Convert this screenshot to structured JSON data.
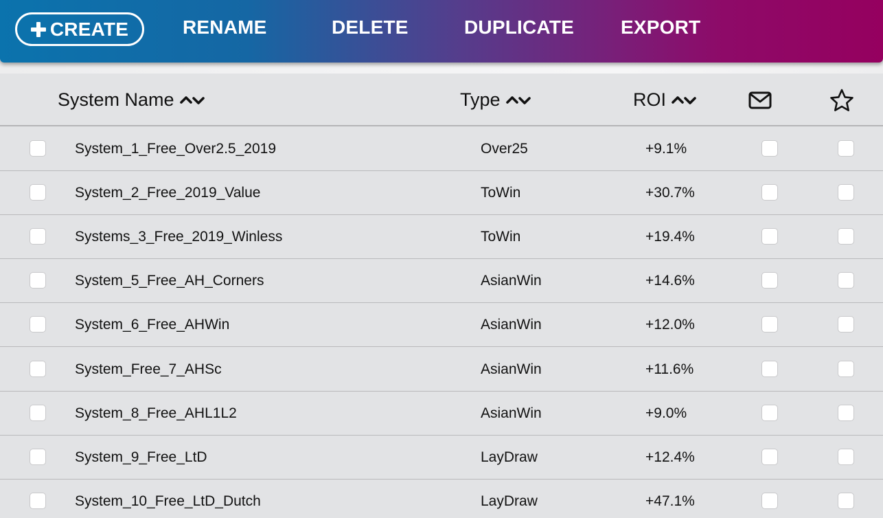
{
  "toolbar": {
    "create_label": "CREATE",
    "rename_label": "RENAME",
    "delete_label": "DELETE",
    "duplicate_label": "DUPLICATE",
    "export_label": "EXPORT"
  },
  "table": {
    "columns": {
      "name": "System Name",
      "type": "Type",
      "roi": "ROI",
      "email_icon": "mail-icon",
      "favorite_icon": "star-icon"
    },
    "rows": [
      {
        "name": "System_1_Free_Over2.5_2019",
        "type": "Over25",
        "roi": "+9.1%"
      },
      {
        "name": "System_2_Free_2019_Value",
        "type": "ToWin",
        "roi": "+30.7%"
      },
      {
        "name": "Systems_3_Free_2019_Winless",
        "type": "ToWin",
        "roi": "+19.4%"
      },
      {
        "name": "System_5_Free_AH_Corners",
        "type": "AsianWin",
        "roi": "+14.6%"
      },
      {
        "name": "System_6_Free_AHWin",
        "type": "AsianWin",
        "roi": "+12.0%"
      },
      {
        "name": "System_Free_7_AHSc",
        "type": "AsianWin",
        "roi": "+11.6%"
      },
      {
        "name": "System_8_Free_AHL1L2",
        "type": "AsianWin",
        "roi": "+9.0%"
      },
      {
        "name": "System_9_Free_LtD",
        "type": "LayDraw",
        "roi": "+12.4%"
      },
      {
        "name": "System_10_Free_LtD_Dutch",
        "type": "LayDraw",
        "roi": "+47.1%"
      }
    ]
  },
  "colors": {
    "toolbar_gradient_start": "#0b73ad",
    "toolbar_gradient_end": "#95005f",
    "table_background": "#e2e3e5"
  }
}
